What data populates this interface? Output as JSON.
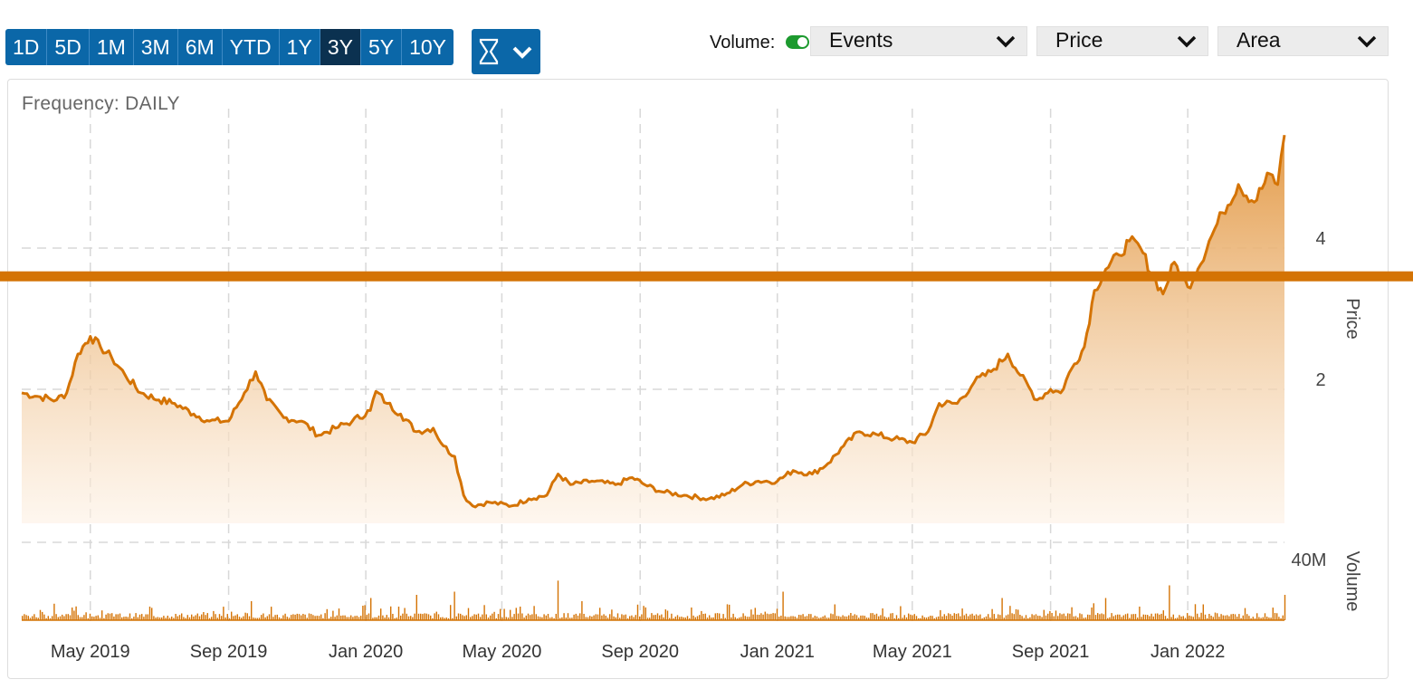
{
  "toolbar": {
    "ranges": [
      "1D",
      "5D",
      "1M",
      "3M",
      "6M",
      "YTD",
      "1Y",
      "3Y",
      "5Y",
      "10Y"
    ],
    "active_range": "3Y",
    "volume_label": "Volume:",
    "selects": {
      "events": "Events",
      "price": "Price",
      "type": "Area"
    }
  },
  "frequency_label": "Frequency: DAILY",
  "colors": {
    "accent": "#d47304",
    "area_top": "#e39a47",
    "toolbar_blue": "#0b67a8",
    "toolbar_active": "#0b3150",
    "toggle_on": "#1d9a2f"
  },
  "chart_data": {
    "type": "area",
    "frequency": "daily",
    "x_range": [
      "2019-03-01",
      "2022-03-31"
    ],
    "x_ticks": [
      "May 2019",
      "Sep 2019",
      "Jan 2020",
      "May 2020",
      "Sep 2020",
      "Jan 2021",
      "May 2021",
      "Sep 2021",
      "Jan 2022"
    ],
    "price_axis": {
      "label": "Price",
      "ticks": [
        2,
        4
      ],
      "ylim": [
        -0.2,
        5.5
      ],
      "position": "right"
    },
    "volume_axis": {
      "label": "Volume",
      "ticks": [
        "40M"
      ]
    },
    "price_series": [
      [
        "2019-03-01",
        1.95
      ],
      [
        "2019-03-15",
        1.9
      ],
      [
        "2019-04-01",
        1.85
      ],
      [
        "2019-04-10",
        1.95
      ],
      [
        "2019-04-20",
        2.5
      ],
      [
        "2019-05-01",
        2.75
      ],
      [
        "2019-05-10",
        2.6
      ],
      [
        "2019-05-20",
        2.45
      ],
      [
        "2019-06-01",
        2.2
      ],
      [
        "2019-06-15",
        1.95
      ],
      [
        "2019-07-01",
        1.85
      ],
      [
        "2019-07-15",
        1.8
      ],
      [
        "2019-08-01",
        1.65
      ],
      [
        "2019-08-15",
        1.55
      ],
      [
        "2019-09-01",
        1.55
      ],
      [
        "2019-09-15",
        1.95
      ],
      [
        "2019-09-25",
        2.25
      ],
      [
        "2019-10-05",
        1.85
      ],
      [
        "2019-10-20",
        1.6
      ],
      [
        "2019-11-05",
        1.55
      ],
      [
        "2019-11-20",
        1.35
      ],
      [
        "2019-12-05",
        1.45
      ],
      [
        "2019-12-20",
        1.55
      ],
      [
        "2020-01-05",
        1.7
      ],
      [
        "2020-01-10",
        1.97
      ],
      [
        "2020-01-20",
        1.8
      ],
      [
        "2020-02-01",
        1.65
      ],
      [
        "2020-02-15",
        1.4
      ],
      [
        "2020-03-01",
        1.45
      ],
      [
        "2020-03-10",
        1.2
      ],
      [
        "2020-03-20",
        1.05
      ],
      [
        "2020-03-28",
        0.5
      ],
      [
        "2020-04-05",
        0.35
      ],
      [
        "2020-04-20",
        0.4
      ],
      [
        "2020-05-10",
        0.35
      ],
      [
        "2020-05-25",
        0.45
      ],
      [
        "2020-06-10",
        0.5
      ],
      [
        "2020-06-20",
        0.8
      ],
      [
        "2020-07-01",
        0.65
      ],
      [
        "2020-07-20",
        0.7
      ],
      [
        "2020-08-10",
        0.65
      ],
      [
        "2020-08-25",
        0.75
      ],
      [
        "2020-09-05",
        0.65
      ],
      [
        "2020-09-20",
        0.55
      ],
      [
        "2020-10-10",
        0.5
      ],
      [
        "2020-11-01",
        0.45
      ],
      [
        "2020-11-15",
        0.5
      ],
      [
        "2020-12-01",
        0.65
      ],
      [
        "2020-12-15",
        0.7
      ],
      [
        "2021-01-01",
        0.7
      ],
      [
        "2021-01-15",
        0.85
      ],
      [
        "2021-02-01",
        0.8
      ],
      [
        "2021-02-15",
        0.95
      ],
      [
        "2021-03-01",
        1.2
      ],
      [
        "2021-03-15",
        1.4
      ],
      [
        "2021-04-01",
        1.35
      ],
      [
        "2021-04-15",
        1.3
      ],
      [
        "2021-05-01",
        1.25
      ],
      [
        "2021-05-15",
        1.4
      ],
      [
        "2021-05-25",
        1.8
      ],
      [
        "2021-06-10",
        1.8
      ],
      [
        "2021-06-25",
        2.1
      ],
      [
        "2021-07-10",
        2.25
      ],
      [
        "2021-07-25",
        2.5
      ],
      [
        "2021-08-05",
        2.2
      ],
      [
        "2021-08-20",
        1.85
      ],
      [
        "2021-09-01",
        2.0
      ],
      [
        "2021-09-10",
        1.95
      ],
      [
        "2021-09-20",
        2.3
      ],
      [
        "2021-10-01",
        2.6
      ],
      [
        "2021-10-10",
        3.4
      ],
      [
        "2021-10-20",
        3.7
      ],
      [
        "2021-11-01",
        3.9
      ],
      [
        "2021-11-10",
        4.1
      ],
      [
        "2021-11-20",
        4.0
      ],
      [
        "2021-12-01",
        3.6
      ],
      [
        "2021-12-10",
        3.35
      ],
      [
        "2021-12-20",
        3.8
      ],
      [
        "2022-01-01",
        3.45
      ],
      [
        "2022-01-10",
        3.7
      ],
      [
        "2022-01-20",
        4.1
      ],
      [
        "2022-02-01",
        4.5
      ],
      [
        "2022-02-15",
        4.9
      ],
      [
        "2022-03-01",
        4.65
      ],
      [
        "2022-03-15",
        5.05
      ],
      [
        "2022-03-22",
        4.9
      ],
      [
        "2022-03-28",
        5.6
      ]
    ],
    "volume_peaks": [
      [
        "2019-04-15",
        "8M"
      ],
      [
        "2019-09-20",
        "12M"
      ],
      [
        "2020-01-05",
        "14M"
      ],
      [
        "2020-02-15",
        "16M"
      ],
      [
        "2020-03-20",
        "18M"
      ],
      [
        "2020-06-20",
        "25M"
      ],
      [
        "2020-07-10",
        "12M"
      ],
      [
        "2021-01-05",
        "18M"
      ],
      [
        "2021-02-20",
        "10M"
      ],
      [
        "2021-07-20",
        "14M"
      ],
      [
        "2021-10-20",
        "14M"
      ],
      [
        "2021-12-15",
        "22M"
      ],
      [
        "2022-01-15",
        "10M"
      ],
      [
        "2022-03-28",
        "16M"
      ]
    ],
    "reference_line": {
      "value": 3.6,
      "color": "#d47304"
    },
    "grid": true
  }
}
